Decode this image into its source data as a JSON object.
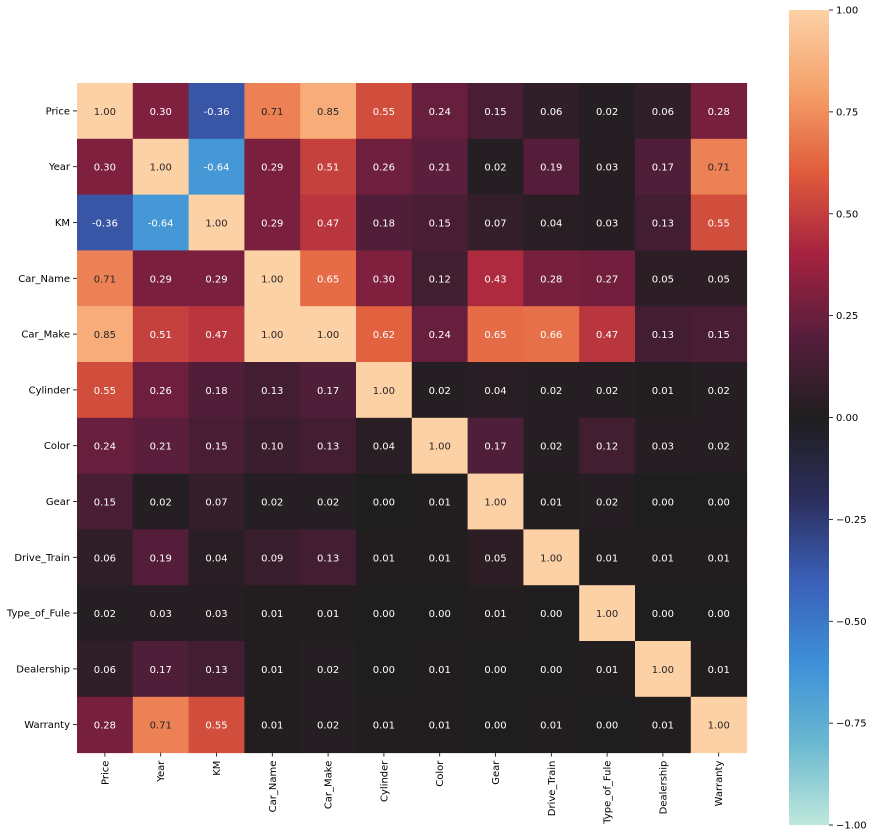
{
  "chart_data": {
    "type": "heatmap",
    "title": "",
    "xlabel": "",
    "ylabel": "",
    "variables": [
      "Price",
      "Year",
      "KM",
      "Car_Name",
      "Car_Make",
      "Cylinder",
      "Color",
      "Gear",
      "Drive_Train",
      "Type_of_Fule",
      "Dealership",
      "Warranty"
    ],
    "matrix": [
      [
        1.0,
        0.3,
        -0.36,
        0.71,
        0.85,
        0.55,
        0.24,
        0.15,
        0.06,
        0.02,
        0.06,
        0.28
      ],
      [
        0.3,
        1.0,
        -0.64,
        0.29,
        0.51,
        0.26,
        0.21,
        0.02,
        0.19,
        0.03,
        0.17,
        0.71
      ],
      [
        -0.36,
        -0.64,
        1.0,
        0.29,
        0.47,
        0.18,
        0.15,
        0.07,
        0.04,
        0.03,
        0.13,
        0.55
      ],
      [
        0.71,
        0.29,
        0.29,
        1.0,
        0.65,
        0.3,
        0.12,
        0.43,
        0.28,
        0.27,
        0.05,
        0.05
      ],
      [
        0.85,
        0.51,
        0.47,
        1.0,
        1.0,
        0.62,
        0.24,
        0.65,
        0.66,
        0.47,
        0.13,
        0.15
      ],
      [
        0.55,
        0.26,
        0.18,
        0.13,
        0.17,
        1.0,
        0.02,
        0.04,
        0.02,
        0.02,
        0.01,
        0.02
      ],
      [
        0.24,
        0.21,
        0.15,
        0.1,
        0.13,
        0.04,
        1.0,
        0.17,
        0.02,
        0.12,
        0.03,
        0.02
      ],
      [
        0.15,
        0.02,
        0.07,
        0.02,
        0.02,
        0.0,
        0.01,
        1.0,
        0.01,
        0.02,
        0.0,
        0.0
      ],
      [
        0.06,
        0.19,
        0.04,
        0.09,
        0.13,
        0.01,
        0.01,
        0.05,
        1.0,
        0.01,
        0.01,
        0.01
      ],
      [
        0.02,
        0.03,
        0.03,
        0.01,
        0.01,
        0.0,
        0.0,
        0.01,
        0.0,
        1.0,
        0.0,
        0.0
      ],
      [
        0.06,
        0.17,
        0.13,
        0.01,
        0.02,
        0.0,
        0.01,
        0.0,
        0.0,
        0.01,
        1.0,
        0.01
      ],
      [
        0.28,
        0.71,
        0.55,
        0.01,
        0.02,
        0.01,
        0.01,
        0.0,
        0.01,
        0.0,
        0.01,
        1.0
      ]
    ],
    "value_format": "2 decimals",
    "colorbar": {
      "range": [
        -1.0,
        1.0
      ],
      "ticks": [
        "1.00",
        "0.75",
        "0.50",
        "0.25",
        "0.00",
        "−0.25",
        "−0.50",
        "−0.75",
        "−1.00"
      ],
      "tick_values": [
        1.0,
        0.75,
        0.5,
        0.25,
        0.0,
        -0.25,
        -0.5,
        -0.75,
        -1.0
      ],
      "colormap": "icefire",
      "color_stops": [
        "#bfe8dc",
        "#6ab8d0",
        "#3c8fd8",
        "#3b5fb8",
        "#2c2e5c",
        "#1f1e1f",
        "#571e3c",
        "#a52240",
        "#e05b3b",
        "#f5a06a",
        "#fdd1a6"
      ]
    },
    "text_color_light": "#ffffff",
    "text_color_dark": "#262626"
  }
}
